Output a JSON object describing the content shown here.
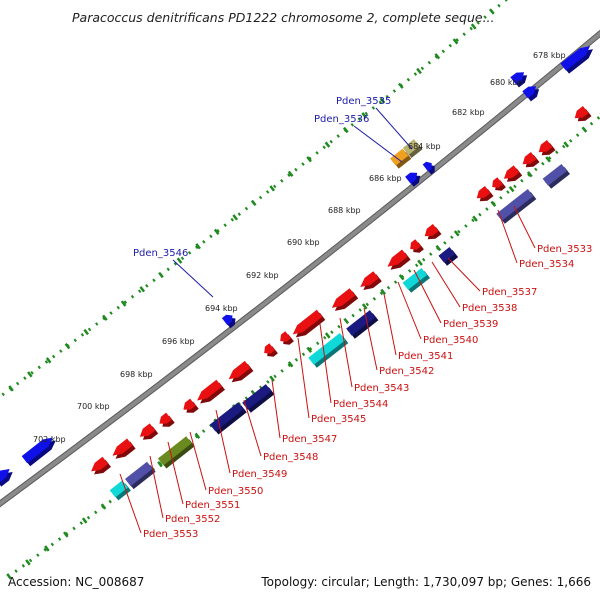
{
  "title": "Paracoccus denitrificans PD1222 chromosome 2, complete seque...",
  "tick_labels": [
    "678 kbp",
    "680 kbp",
    "682 kbp",
    "684 kbp",
    "686 kbp",
    "688 kbp",
    "690 kbp",
    "692 kbp",
    "694 kbp",
    "696 kbp",
    "698 kbp",
    "700 kbp",
    "702 kbp"
  ],
  "forward_labels": [
    "Pden_3535",
    "Pden_3536",
    "Pden_3546"
  ],
  "reverse_labels": [
    "Pden_3533",
    "Pden_3534",
    "Pden_3537",
    "Pden_3538",
    "Pden_3539",
    "Pden_3540",
    "Pden_3541",
    "Pden_3542",
    "Pden_3543",
    "Pden_3544",
    "Pden_3545",
    "Pden_3547",
    "Pden_3548",
    "Pden_3549",
    "Pden_3550",
    "Pden_3551",
    "Pden_3552",
    "Pden_3553"
  ],
  "colors": {
    "backbone": "#8a8a8a",
    "ticks": "#1f8a1f",
    "forward_gene": "#1010e8",
    "reverse_gene": "#e81010",
    "cog_navy": "#1a1a80",
    "cog_slate": "#5050a8",
    "cog_cyan": "#10d8d8",
    "cog_olive": "#6a8a20",
    "cog_orange": "#f0a020",
    "cog_khaki": "#b8b070",
    "label_blue": "#1c1caa",
    "label_red": "#cc1010"
  },
  "footer": {
    "accession": "Accession: NC_008687",
    "summary": "Topology: circular; Length: 1,730,097 bp; Genes: 1,666"
  }
}
